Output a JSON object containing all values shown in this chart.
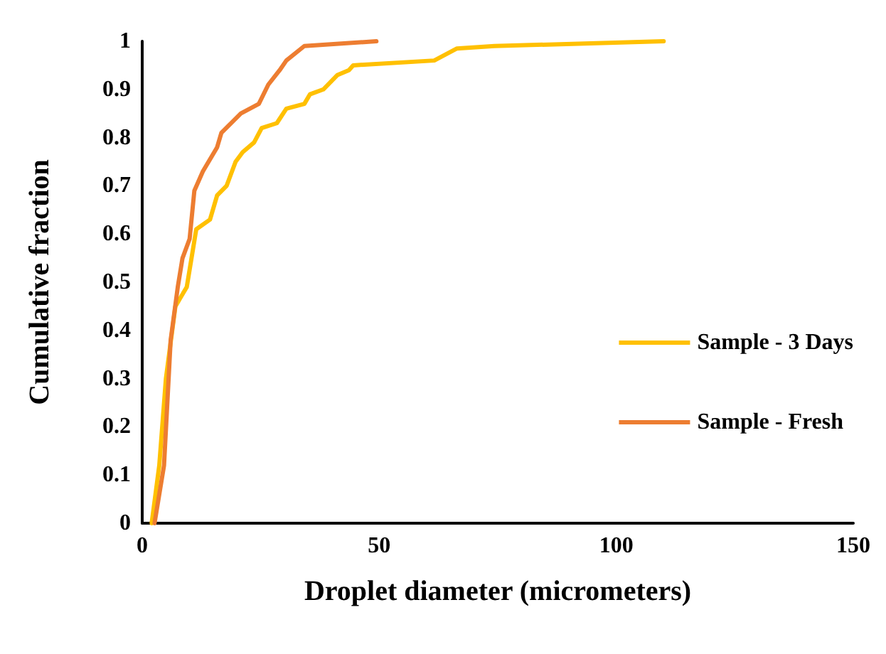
{
  "chart_data": {
    "type": "line",
    "xlabel": "Droplet diameter (micrometers)",
    "ylabel": "Cumulative fraction",
    "xlim": [
      0,
      150
    ],
    "xticks": [
      0,
      50,
      100,
      150
    ],
    "ylim": [
      0,
      1
    ],
    "yticks": [
      0,
      0.1,
      0.2,
      0.3,
      0.4,
      0.5,
      0.6,
      0.7,
      0.8,
      0.9,
      1
    ],
    "grid": false,
    "legend": "right",
    "marker": "none",
    "line_style": "solid",
    "series": [
      {
        "name": "Sample - 3 Days",
        "color": "#ffc000",
        "x": [
          2,
          3.6,
          5,
          7,
          9.4,
          11.4,
          14.3,
          15.8,
          17.8,
          19.7,
          21.2,
          23.6,
          25.2,
          28.4,
          30.4,
          34.2,
          35.4,
          38.2,
          41.2,
          43.6,
          44.5,
          61.6,
          66.4,
          74.3,
          110
        ],
        "values": [
          0,
          0.12,
          0.3,
          0.45,
          0.49,
          0.61,
          0.63,
          0.68,
          0.7,
          0.75,
          0.77,
          0.79,
          0.82,
          0.83,
          0.86,
          0.87,
          0.89,
          0.9,
          0.93,
          0.94,
          0.95,
          0.96,
          0.985,
          0.99,
          1
        ]
      },
      {
        "name": "Sample - Fresh",
        "color": "#ed7d31",
        "x": [
          2.6,
          4.6,
          6,
          7.5,
          8.5,
          10,
          11,
          12.8,
          15.8,
          16.7,
          20.8,
          24.6,
          26.6,
          29,
          30.4,
          34.2,
          49.4
        ],
        "values": [
          0,
          0.12,
          0.38,
          0.49,
          0.55,
          0.59,
          0.69,
          0.73,
          0.78,
          0.81,
          0.85,
          0.87,
          0.91,
          0.94,
          0.96,
          0.99,
          1
        ]
      }
    ]
  }
}
